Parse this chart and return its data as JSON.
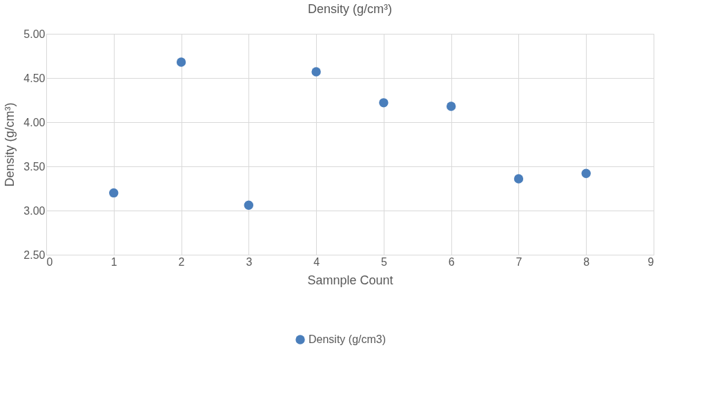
{
  "chart_data": {
    "type": "scatter",
    "title": "Density (g/cm³)",
    "xlabel": "Samnple Count",
    "ylabel": "Density (g/cm³)",
    "x": [
      1,
      2,
      3,
      4,
      5,
      6,
      7,
      8
    ],
    "series": [
      {
        "name": "Density (g/cm3)",
        "color": "#4a7ebb",
        "values": [
          3.2,
          4.68,
          3.06,
          4.57,
          4.22,
          4.18,
          3.36,
          3.42
        ]
      }
    ],
    "xlim": [
      0,
      9
    ],
    "xticks": [
      0,
      1,
      2,
      3,
      4,
      5,
      6,
      7,
      8,
      9
    ],
    "ylim": [
      2.5,
      5.0
    ],
    "yticks": [
      {
        "value": 2.5,
        "label": "2.50"
      },
      {
        "value": 3.0,
        "label": "3.00"
      },
      {
        "value": 3.5,
        "label": "3.50"
      },
      {
        "value": 4.0,
        "label": "4.00"
      },
      {
        "value": 4.5,
        "label": "4.50"
      },
      {
        "value": 5.0,
        "label": "5.00"
      }
    ],
    "grid": true,
    "legend": "bottom",
    "marker": "circle"
  }
}
